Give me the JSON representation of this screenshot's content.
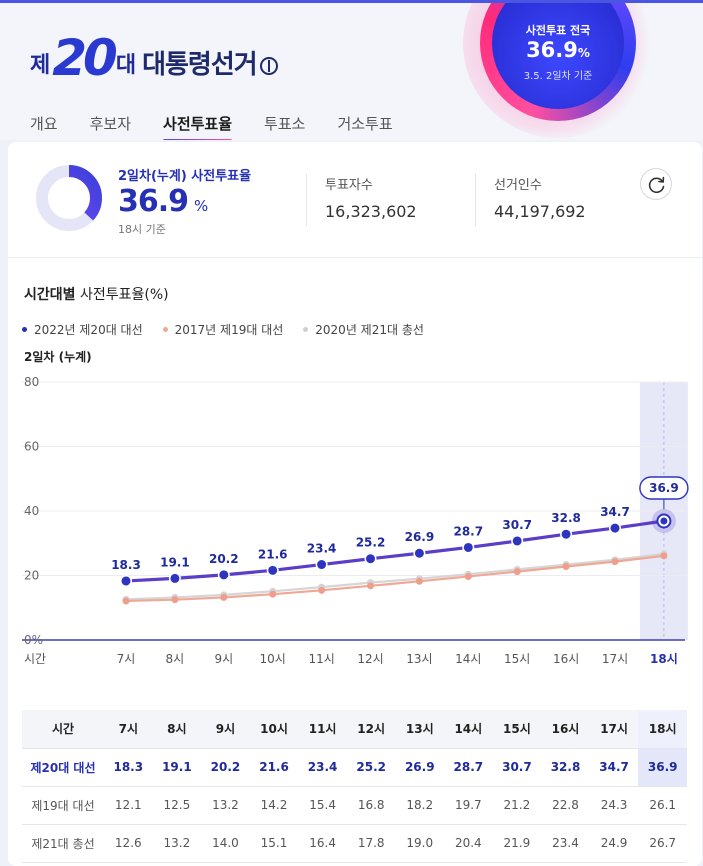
{
  "header": {
    "logo_prefix": "제",
    "logo_number": "20",
    "logo_suffix": "대",
    "title": "대통령선거"
  },
  "badge": {
    "label": "사전투표 전국",
    "value": "36.9",
    "unit": "%",
    "note": "3.5. 2일차 기준"
  },
  "tabs": [
    {
      "label": "개요",
      "active": false
    },
    {
      "label": "후보자",
      "active": false
    },
    {
      "label": "사전투표율",
      "active": true
    },
    {
      "label": "투표소",
      "active": false
    },
    {
      "label": "거소투표",
      "active": false
    }
  ],
  "summary": {
    "label": "2일차(누계) 사전투표율",
    "value": "36.9",
    "unit": "%",
    "note": "18시 기준",
    "voters_label": "투표자수",
    "voters_value": "16,323,602",
    "electorate_label": "선거인수",
    "electorate_value": "44,197,692"
  },
  "section": {
    "title_bold": "시간대별",
    "title_rest": " 사전투표율(%)",
    "subtitle": "2일차 (누계)"
  },
  "colors": {
    "accent": "#2530b4",
    "series_2022": "#5a3dc8",
    "series_2017": "#f0a896",
    "series_2020": "#d6d6d6",
    "highlight_band": "#e4e7f9"
  },
  "chart_data": {
    "type": "line",
    "categories": [
      "7시",
      "8시",
      "9시",
      "10시",
      "11시",
      "12시",
      "13시",
      "14시",
      "15시",
      "16시",
      "17시",
      "18시"
    ],
    "x_axis_label": "시간",
    "y_ticks": [
      "0%",
      "20",
      "40",
      "60",
      "80"
    ],
    "ylim": [
      0,
      80
    ],
    "grid": true,
    "highlight_category": "18시",
    "series": [
      {
        "name": "2022년 제20대 대선",
        "values": [
          18.3,
          19.1,
          20.2,
          21.6,
          23.4,
          25.2,
          26.9,
          28.7,
          30.7,
          32.8,
          34.7,
          36.9
        ],
        "labeled": true
      },
      {
        "name": "2017년 제19대 대선",
        "values": [
          12.1,
          12.5,
          13.2,
          14.2,
          15.4,
          16.8,
          18.2,
          19.7,
          21.2,
          22.8,
          24.3,
          26.1
        ],
        "labeled": false
      },
      {
        "name": "2020년 제21대 총선",
        "values": [
          12.6,
          13.2,
          14.0,
          15.1,
          16.4,
          17.8,
          19.0,
          20.4,
          21.9,
          23.4,
          24.9,
          26.7
        ],
        "labeled": false
      }
    ]
  },
  "table": {
    "header_first": "시간",
    "columns": [
      "7시",
      "8시",
      "9시",
      "10시",
      "11시",
      "12시",
      "13시",
      "14시",
      "15시",
      "16시",
      "17시",
      "18시"
    ],
    "rows": [
      {
        "label": "제20대 대선",
        "values": [
          "18.3",
          "19.1",
          "20.2",
          "21.6",
          "23.4",
          "25.2",
          "26.9",
          "28.7",
          "30.7",
          "32.8",
          "34.7",
          "36.9"
        ]
      },
      {
        "label": "제19대 대선",
        "values": [
          "12.1",
          "12.5",
          "13.2",
          "14.2",
          "15.4",
          "16.8",
          "18.2",
          "19.7",
          "21.2",
          "22.8",
          "24.3",
          "26.1"
        ]
      },
      {
        "label": "제21대 총선",
        "values": [
          "12.6",
          "13.2",
          "14.0",
          "15.1",
          "16.4",
          "17.8",
          "19.0",
          "20.4",
          "21.9",
          "23.4",
          "24.9",
          "26.7"
        ]
      }
    ]
  }
}
